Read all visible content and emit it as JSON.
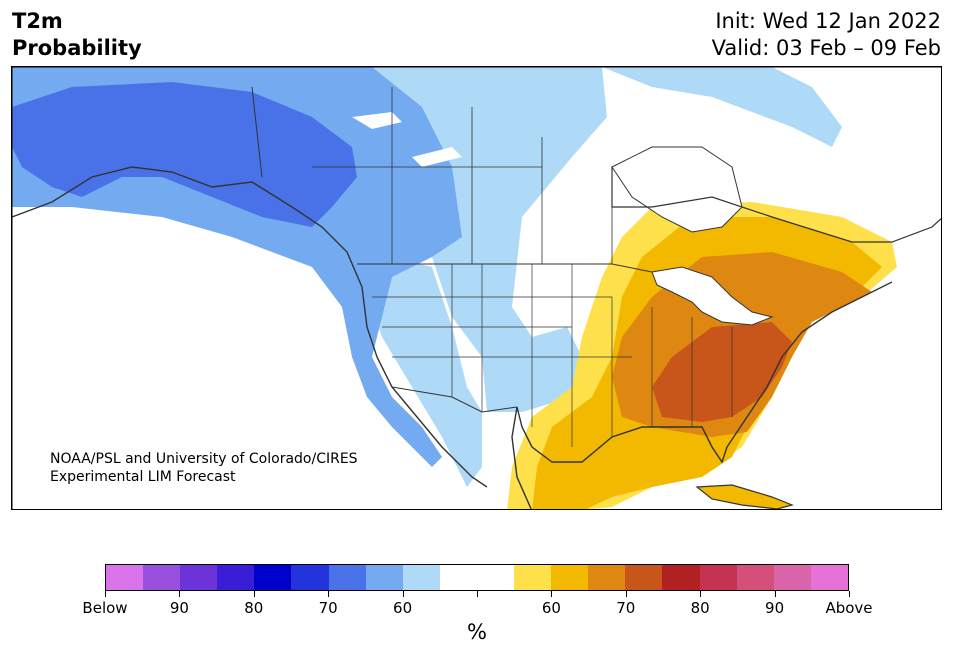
{
  "header": {
    "title_line1": "T2m",
    "title_line2": "Probability",
    "init": "Init: Wed 12 Jan 2022",
    "valid": "Valid: 03 Feb – 09 Feb"
  },
  "credit": {
    "line1": "NOAA/PSL and University of Colorado/CIRES",
    "line2": "Experimental LIM Forecast"
  },
  "colorbar": {
    "colors": [
      "#d873ea",
      "#9a50df",
      "#6b33d8",
      "#3a1dd6",
      "#0000cc",
      "#2434dc",
      "#4a72e8",
      "#73aaf0",
      "#aedaf8",
      "#ffffff",
      "#ffffff",
      "#fee04a",
      "#f3b800",
      "#de8812",
      "#c8561a",
      "#b12121",
      "#c43452",
      "#d4507a",
      "#d964aa",
      "#e672d7"
    ],
    "labels": [
      "Below",
      "90",
      "80",
      "70",
      "60",
      "",
      "60",
      "70",
      "80",
      "90",
      "Above"
    ],
    "unit": "%"
  },
  "legend_meaning": {
    "blue": "Below-normal temperature probability",
    "orange": "Above-normal temperature probability"
  }
}
